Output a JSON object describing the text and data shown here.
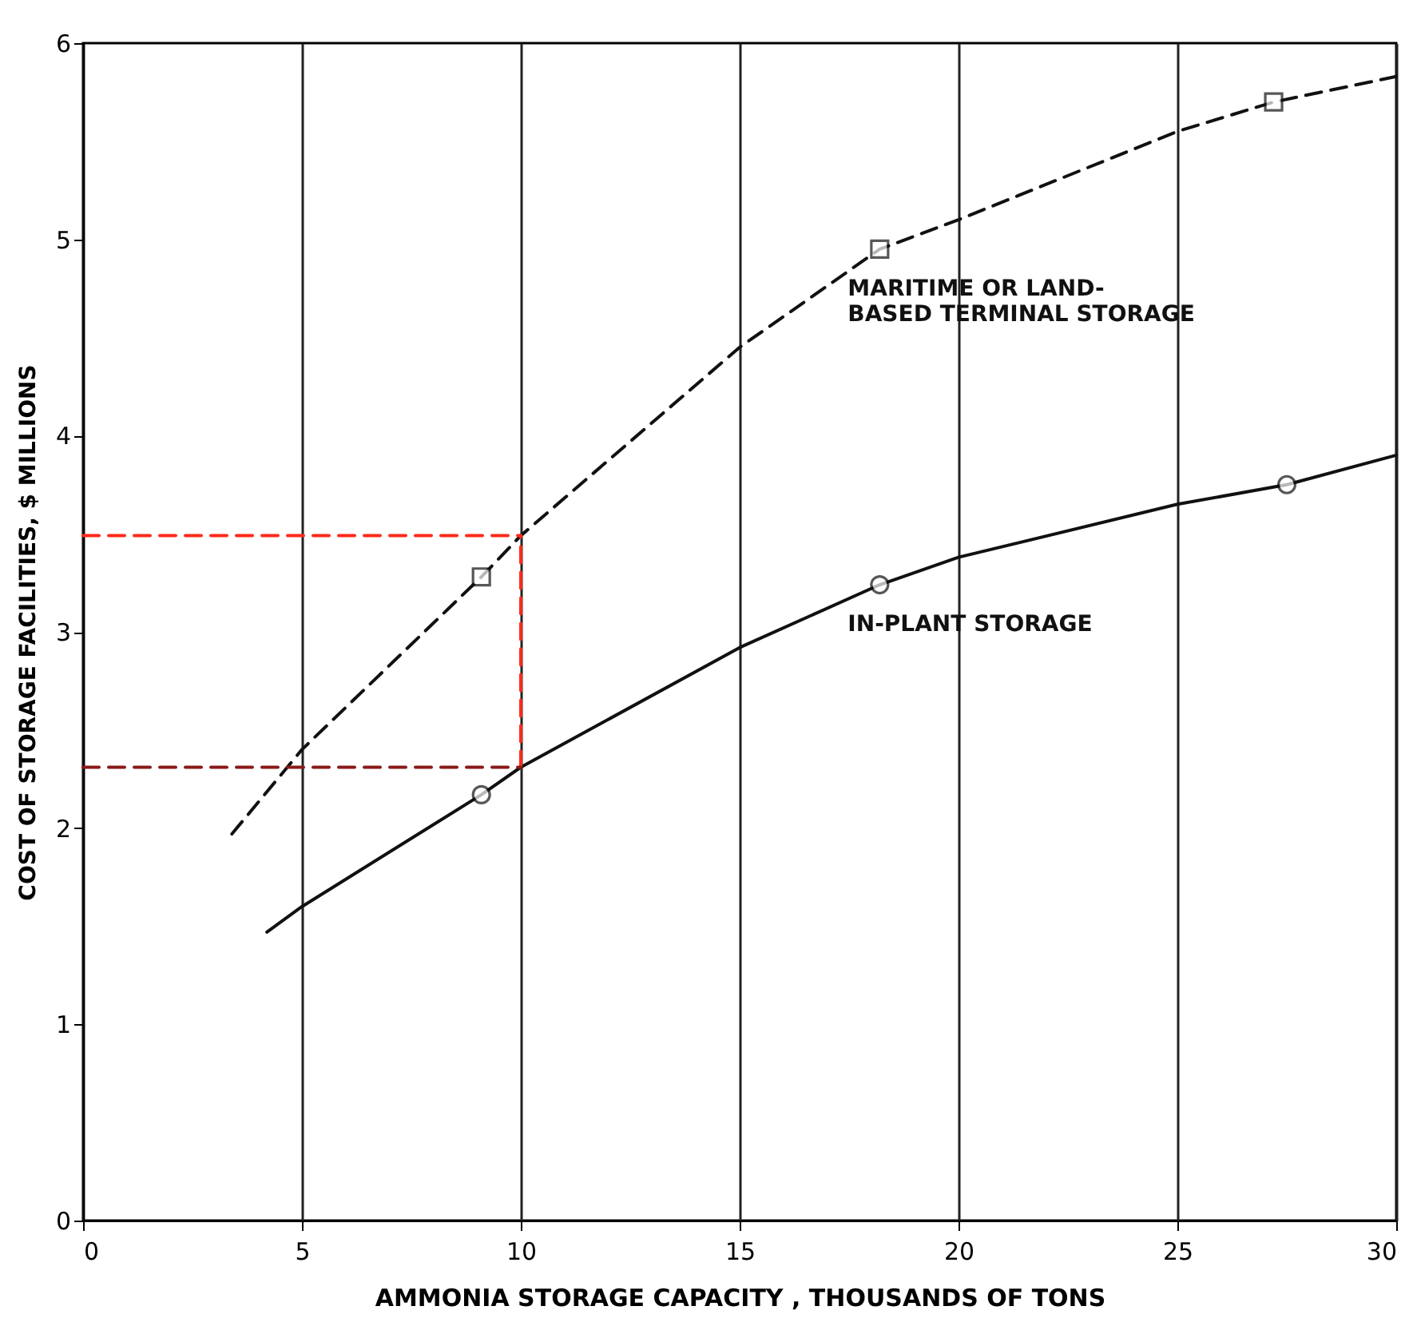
{
  "chart_data": {
    "type": "line",
    "xlabel": "AMMONIA STORAGE CAPACITY , THOUSANDS OF TONS",
    "ylabel": "COST OF STORAGE FACILITIES, $ MILLIONS",
    "xlim": [
      0,
      30
    ],
    "xticks": [
      0,
      5,
      10,
      15,
      20,
      25,
      30
    ],
    "ylim": [
      0,
      6
    ],
    "yticks": [
      0,
      1,
      2,
      3,
      4,
      5,
      6
    ],
    "grid": "x",
    "series": [
      {
        "name": "MARITIME OR LAND-BASED TERMINAL STORAGE",
        "color": "#111111",
        "line_style": "dashed",
        "marker": "none",
        "x": [
          3.4,
          5,
          9.1,
          10,
          15,
          18.2,
          20,
          25,
          27.2,
          30
        ],
        "values": [
          1.97,
          2.4,
          3.28,
          3.49,
          4.45,
          4.95,
          5.1,
          5.55,
          5.7,
          5.83
        ]
      },
      {
        "name": "IN-PLANT STORAGE",
        "color": "#111111",
        "line_style": "solid",
        "marker": "none",
        "x": [
          4.2,
          5,
          9.1,
          10,
          15,
          18.2,
          20,
          25,
          27.5,
          30
        ],
        "values": [
          1.47,
          1.6,
          2.17,
          2.31,
          2.92,
          3.24,
          3.38,
          3.65,
          3.75,
          3.9
        ]
      },
      {
        "type": "scatter",
        "color": "#111111",
        "marker": "square",
        "x": [
          9.1,
          18.2,
          27.2
        ],
        "values": [
          3.28,
          4.95,
          5.7
        ]
      },
      {
        "type": "scatter",
        "color": "#111111",
        "marker": "circle",
        "x": [
          9.1,
          18.2,
          27.5
        ],
        "values": [
          2.17,
          3.24,
          3.75
        ]
      },
      {
        "color": "#ff2a1a",
        "line_style": "dashed",
        "marker": "none",
        "x": [
          10,
          10
        ],
        "values": [
          2.31,
          3.49
        ]
      },
      {
        "color": "#ff2a1a",
        "line_style": "dashed",
        "marker": "none",
        "x": [
          0,
          10
        ],
        "values": [
          3.49,
          3.49
        ]
      },
      {
        "color": "#8b1a1a",
        "line_style": "dashed",
        "marker": "none",
        "x": [
          0,
          10
        ],
        "values": [
          2.31,
          2.31
        ]
      }
    ]
  }
}
